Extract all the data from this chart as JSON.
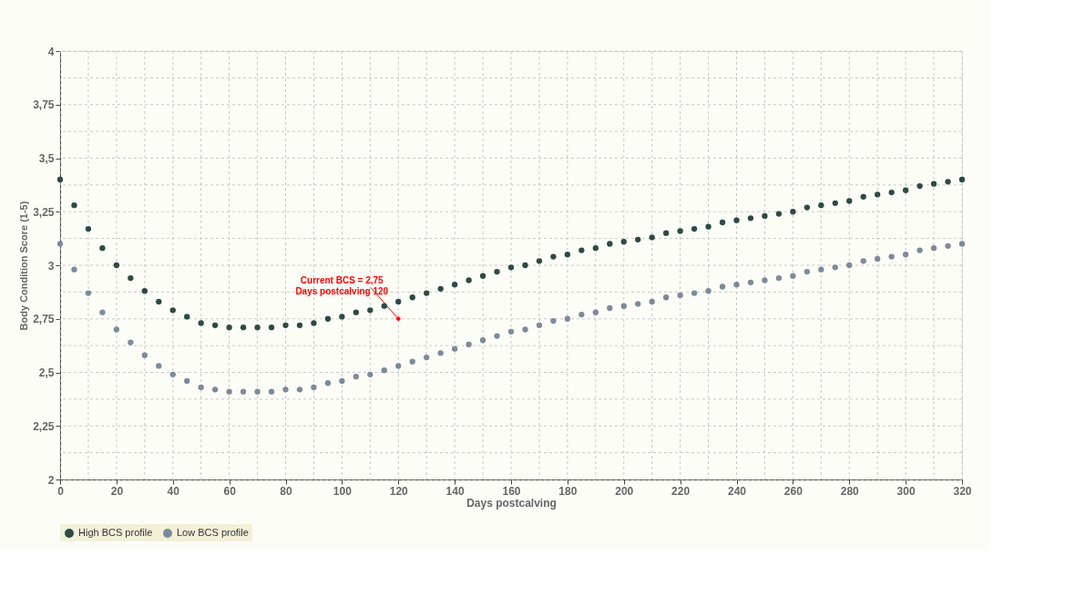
{
  "chart_data": {
    "type": "scatter",
    "xlabel": "Days postcalving",
    "ylabel": "Body Condition Score (1-5)",
    "x": [
      0,
      5,
      10,
      15,
      20,
      25,
      30,
      35,
      40,
      45,
      50,
      55,
      60,
      65,
      70,
      75,
      80,
      85,
      90,
      95,
      100,
      105,
      110,
      115,
      120,
      125,
      130,
      135,
      140,
      145,
      150,
      155,
      160,
      165,
      170,
      175,
      180,
      185,
      190,
      195,
      200,
      205,
      210,
      215,
      220,
      225,
      230,
      235,
      240,
      245,
      250,
      255,
      260,
      265,
      270,
      275,
      280,
      285,
      290,
      295,
      300,
      305,
      310,
      315,
      320
    ],
    "series": [
      {
        "name": "High BCS profile",
        "color": "#2d4a46",
        "values": [
          3.4,
          3.28,
          3.17,
          3.08,
          3.0,
          2.94,
          2.88,
          2.83,
          2.79,
          2.76,
          2.73,
          2.72,
          2.71,
          2.71,
          2.71,
          2.71,
          2.72,
          2.72,
          2.73,
          2.75,
          2.76,
          2.78,
          2.79,
          2.81,
          2.83,
          2.85,
          2.87,
          2.89,
          2.91,
          2.93,
          2.95,
          2.97,
          2.99,
          3.0,
          3.02,
          3.04,
          3.05,
          3.07,
          3.08,
          3.1,
          3.11,
          3.12,
          3.13,
          3.15,
          3.16,
          3.17,
          3.18,
          3.2,
          3.21,
          3.22,
          3.23,
          3.24,
          3.25,
          3.27,
          3.28,
          3.29,
          3.3,
          3.32,
          3.33,
          3.34,
          3.35,
          3.37,
          3.38,
          3.39,
          3.4
        ]
      },
      {
        "name": "Low BCS profile",
        "color": "#7b8b9b",
        "values": [
          3.1,
          2.98,
          2.87,
          2.78,
          2.7,
          2.64,
          2.58,
          2.53,
          2.49,
          2.46,
          2.43,
          2.42,
          2.41,
          2.41,
          2.41,
          2.41,
          2.42,
          2.42,
          2.43,
          2.45,
          2.46,
          2.48,
          2.49,
          2.51,
          2.53,
          2.55,
          2.57,
          2.59,
          2.61,
          2.63,
          2.65,
          2.67,
          2.69,
          2.7,
          2.72,
          2.74,
          2.75,
          2.77,
          2.78,
          2.8,
          2.81,
          2.82,
          2.83,
          2.85,
          2.86,
          2.87,
          2.88,
          2.9,
          2.91,
          2.92,
          2.93,
          2.94,
          2.95,
          2.97,
          2.98,
          2.99,
          3.0,
          3.02,
          3.03,
          3.04,
          3.05,
          3.07,
          3.08,
          3.09,
          3.1
        ]
      }
    ],
    "annotations": [
      {
        "text": "Current BCS = 2,75\nDays postcalving 120",
        "x": 120,
        "y": 2.75
      }
    ],
    "xlim": [
      0,
      320
    ],
    "xticks": [
      0,
      {
        "value": 10,
        "label": null
      },
      20,
      {
        "value": 30,
        "label": null
      },
      40,
      {
        "value": 50,
        "label": null
      },
      60,
      {
        "value": 70,
        "label": null
      },
      80,
      {
        "value": 90,
        "label": null
      },
      100,
      {
        "value": 110,
        "label": null
      },
      120,
      {
        "value": 130,
        "label": null
      },
      140,
      {
        "value": 150,
        "label": null
      },
      160,
      {
        "value": 170,
        "label": null
      },
      180,
      {
        "value": 190,
        "label": null
      },
      200,
      {
        "value": 210,
        "label": null
      },
      220,
      {
        "value": 230,
        "label": null
      },
      240,
      {
        "value": 250,
        "label": null
      },
      260,
      {
        "value": 270,
        "label": null
      },
      280,
      {
        "value": 290,
        "label": null
      },
      300,
      {
        "value": 310,
        "label": null
      },
      320
    ],
    "ylim": [
      2,
      4
    ],
    "yticks": [
      2,
      {
        "value": 2.125,
        "label": null
      },
      {
        "value": 2.25,
        "label": "2,25"
      },
      {
        "value": 2.375,
        "label": null
      },
      {
        "value": 2.5,
        "label": "2,5"
      },
      {
        "value": 2.625,
        "label": null
      },
      {
        "value": 2.75,
        "label": "2,75"
      },
      {
        "value": 2.875,
        "label": null
      },
      3,
      {
        "value": 3.125,
        "label": null
      },
      {
        "value": 3.25,
        "label": "3,25"
      },
      {
        "value": 3.375,
        "label": null
      },
      {
        "value": 3.5,
        "label": "3,5"
      },
      {
        "value": 3.625,
        "label": null
      },
      {
        "value": 3.75,
        "label": "3,75"
      },
      {
        "value": 3.875,
        "label": null
      },
      4
    ],
    "grid": true,
    "legend": "bottom",
    "marker": "circle"
  }
}
